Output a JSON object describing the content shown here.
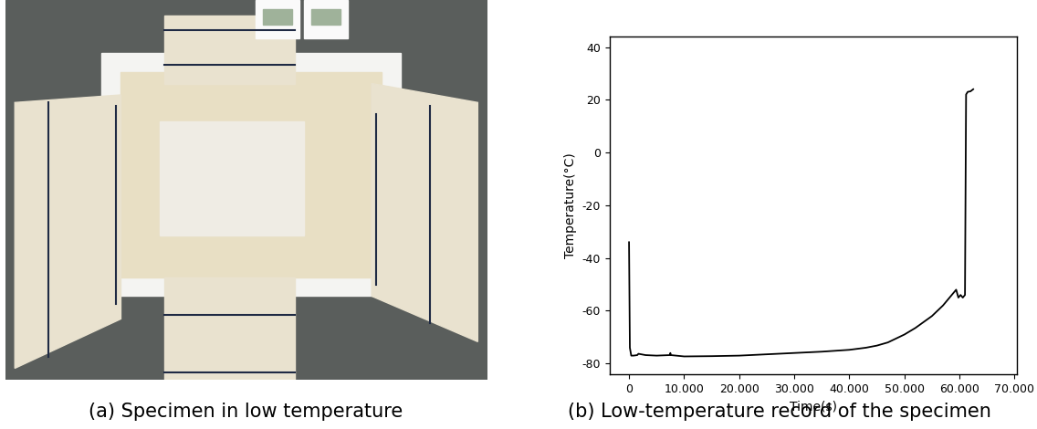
{
  "photo": {
    "caption": "(a) Specimen in low temperature"
  },
  "chart_data": {
    "type": "line",
    "title": "(b) Low-temperature record of the specimen",
    "x_label": "Time(s)",
    "y_label": "Temperature(°C)",
    "color": "#000000",
    "x": [
      0,
      150,
      400,
      800,
      1500,
      1700,
      3000,
      5000,
      7400,
      7500,
      7600,
      10000,
      15000,
      20000,
      25000,
      30000,
      35000,
      40000,
      43000,
      45000,
      47000,
      50000,
      52000,
      55000,
      57000,
      59000,
      59400,
      59800,
      60200,
      60600,
      61000,
      61200,
      61500,
      62000,
      62500
    ],
    "values": [
      -34,
      -74,
      -77,
      -77,
      -76.8,
      -76.3,
      -76.8,
      -77,
      -76.8,
      -76,
      -76.8,
      -77.3,
      -77.2,
      -77,
      -76.5,
      -76,
      -75.5,
      -74.8,
      -74,
      -73.2,
      -72,
      -69,
      -66.5,
      -62,
      -58,
      -53,
      -52,
      -55,
      -54,
      -55,
      -54,
      22,
      23,
      23.2,
      24
    ],
    "xlim": [
      -3500,
      70500
    ],
    "ylim": [
      -84,
      44
    ],
    "xticks": [
      0,
      {
        "value": 10000,
        "label": "10.000"
      },
      {
        "value": 20000,
        "label": "20.000"
      },
      {
        "value": 30000,
        "label": "30.000"
      },
      {
        "value": 40000,
        "label": "40.000"
      },
      {
        "value": 50000,
        "label": "50.000"
      },
      {
        "value": 60000,
        "label": "60.000"
      },
      {
        "value": 70000,
        "label": "70.000"
      }
    ],
    "yticks": [
      -80,
      -60,
      -40,
      -20,
      0,
      20,
      40
    ]
  }
}
